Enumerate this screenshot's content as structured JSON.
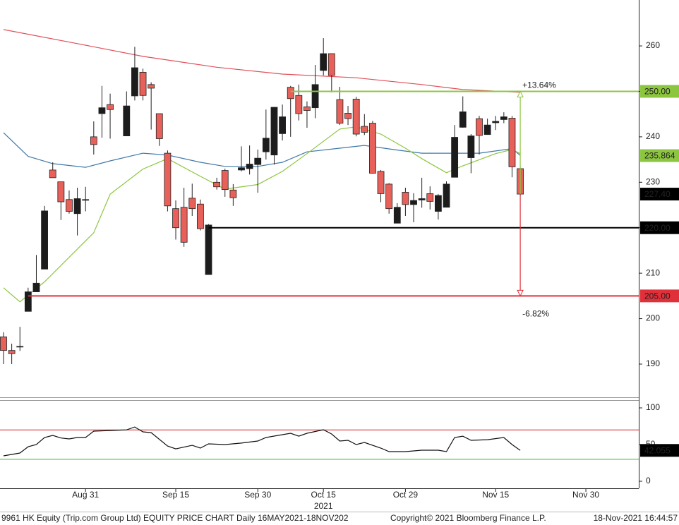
{
  "chart_data": [
    {
      "type": "candlestick",
      "x": [
        0,
        1,
        2,
        3,
        4,
        5,
        6,
        7,
        8,
        9,
        10,
        11,
        12,
        13,
        15,
        16,
        17,
        18,
        19,
        20,
        21,
        22,
        23,
        24,
        25,
        26,
        27,
        28,
        29,
        30,
        31,
        32,
        33,
        34,
        35,
        36,
        37,
        38,
        39,
        40,
        41,
        42,
        43,
        44,
        45,
        46,
        47,
        48,
        49,
        50,
        51,
        52,
        53,
        54,
        55,
        56,
        57,
        58,
        59,
        60,
        61,
        62,
        63
      ],
      "open": [
        196.0,
        193.0,
        193.9,
        201.6,
        205.9,
        210.9,
        232.7,
        230.1,
        226.2,
        223.1,
        226.2,
        240.0,
        245.1,
        247.1,
        240.2,
        249.0,
        254.2,
        251.5,
        245.1,
        236.4,
        224.2,
        224.5,
        226.5,
        225.2,
        209.7,
        230.0,
        232.6,
        228.3,
        232.7,
        233.0,
        233.9,
        236.7,
        236.0,
        240.7,
        250.9,
        249.1,
        246.6,
        246.4,
        254.6,
        258.3,
        248.2,
        245.2,
        248.3,
        242.3,
        243.0,
        232.4,
        229.6,
        221.0,
        227.8,
        225.1,
        226.1,
        227.5,
        223.6,
        224.5,
        231.1,
        242.1,
        235.4,
        244.0,
        240.5,
        243.1,
        243.8,
        244.1,
        233.0
      ],
      "high": [
        197.0,
        194.5,
        198.2,
        206.8,
        214.0,
        224.8,
        234.4,
        230.1,
        228.2,
        228.8,
        229.0,
        243.4,
        251.2,
        249.5,
        250.0,
        259.8,
        255.0,
        252.0,
        245.1,
        237.0,
        226.0,
        228.8,
        229.7,
        226.2,
        220.8,
        231.0,
        233.0,
        229.6,
        237.9,
        238.1,
        237.2,
        246.0,
        246.5,
        247.1,
        251.2,
        251.5,
        247.8,
        255.8,
        261.7,
        258.3,
        251.0,
        246.8,
        248.8,
        245.0,
        243.5,
        232.7,
        229.8,
        225.4,
        228.8,
        227.6,
        231.0,
        229.1,
        227.4,
        230.2,
        242.6,
        248.9,
        240.6,
        244.6,
        244.0,
        244.6,
        245.4,
        244.6,
        233.4
      ],
      "low": [
        190.0,
        190.0,
        192.9,
        201.6,
        205.9,
        210.9,
        231.0,
        221.7,
        223.1,
        218.3,
        223.6,
        236.1,
        239.8,
        239.6,
        240.2,
        248.0,
        248.0,
        241.6,
        238.0,
        223.6,
        217.4,
        215.8,
        222.6,
        219.4,
        209.7,
        228.4,
        226.8,
        224.8,
        232.4,
        231.7,
        227.7,
        235.0,
        233.9,
        239.2,
        240.0,
        243.6,
        242.0,
        244.1,
        253.5,
        249.8,
        242.6,
        242.6,
        240.1,
        240.4,
        231.9,
        225.6,
        223.1,
        221.0,
        222.6,
        221.2,
        224.4,
        224.0,
        221.8,
        224.5,
        231.1,
        242.0,
        232.0,
        236.1,
        240.5,
        241.5,
        243.0,
        231.1,
        226.9
      ],
      "close": [
        193.0,
        192.3,
        193.9,
        205.9,
        207.8,
        223.7,
        231.0,
        225.7,
        223.6,
        226.4,
        226.2,
        238.3,
        246.4,
        246.0,
        246.8,
        255.2,
        249.1,
        250.7,
        239.6,
        224.8,
        220.0,
        216.8,
        224.2,
        219.8,
        220.6,
        229.0,
        228.4,
        226.6,
        233.2,
        234.0,
        235.3,
        239.7,
        246.5,
        244.4,
        248.4,
        245.1,
        245.8,
        251.5,
        258.3,
        253.5,
        243.0,
        244.0,
        240.6,
        241.0,
        232.0,
        227.5,
        224.2,
        224.5,
        225.1,
        226.0,
        226.4,
        225.8,
        227.1,
        229.6,
        239.9,
        245.5,
        240.2,
        240.3,
        242.6,
        243.4,
        244.4,
        233.4,
        227.4
      ],
      "up_color": "#1c1c1c",
      "down_color": "#e8605a",
      "lines": [
        {
          "color": "#e0505a",
          "x": [
            0,
            9,
            17,
            26,
            34,
            43,
            51,
            56,
            63
          ],
          "values": [
            263.6,
            260.5,
            257.7,
            255.3,
            253.8,
            253.0,
            251.5,
            250.4,
            249.8
          ]
        },
        {
          "color": "#3f78a8",
          "x": [
            0,
            3,
            6,
            10,
            13,
            17,
            20,
            24,
            27,
            31,
            34,
            37,
            41,
            44,
            48,
            51,
            55,
            58,
            62,
            63
          ],
          "values": [
            240.9,
            235.7,
            234.1,
            233.3,
            234.7,
            236.4,
            236.0,
            234.4,
            233.5,
            233.5,
            234.4,
            236.7,
            237.5,
            238.1,
            237.1,
            236.4,
            236.4,
            236.4,
            237.4,
            235.9
          ]
        },
        {
          "color": "#8cc63f",
          "x": [
            0,
            2,
            5,
            8,
            11,
            13,
            17,
            20,
            24,
            27,
            31,
            34,
            37,
            41,
            43,
            46,
            49,
            51,
            54,
            56,
            60,
            62,
            63
          ],
          "values": [
            206.8,
            203.7,
            208.1,
            213.5,
            218.9,
            227.4,
            232.9,
            235.2,
            231.3,
            228.5,
            229.5,
            232.4,
            236.3,
            241.7,
            242.2,
            240.6,
            237.5,
            235.2,
            232.1,
            233.6,
            236.3,
            237.2,
            236.3
          ]
        }
      ],
      "hlines": [
        {
          "value": 250,
          "label": "250.00",
          "color": "#8cc63f",
          "x_start": 35
        },
        {
          "value": 220,
          "label": "220.00",
          "color": "#000000",
          "x_start": 25
        },
        {
          "value": 205,
          "label": "205.00",
          "color": "#e0303a",
          "x_start": 3
        }
      ],
      "markers": [
        {
          "value": 235.864,
          "label": "235.864",
          "color": "#8cc63f"
        },
        {
          "value": 227.4,
          "label": "227.40",
          "color": "#000000"
        }
      ],
      "arrows": [
        {
          "x": 63,
          "from": 227.4,
          "to": 250,
          "change": {
            "value": 13.64,
            "label": "+13.64%"
          },
          "color": "#8cc63f"
        },
        {
          "x": 63,
          "from": 227.4,
          "to": 205,
          "change": {
            "value": -6.82,
            "label": "-6.82%"
          },
          "color": "#e0303a"
        }
      ],
      "xlim": [
        -0.43,
        77.45
      ],
      "ylim": [
        182.7,
        270.1
      ],
      "yticks": [
        190,
        200,
        210,
        220,
        230,
        240,
        250,
        260
      ]
    },
    {
      "type": "line",
      "x": [
        0,
        2,
        3,
        4,
        5,
        6,
        7,
        8,
        9,
        10,
        11,
        13,
        15,
        16,
        17,
        18,
        20,
        21,
        23,
        24,
        25,
        27,
        29,
        31,
        32,
        34,
        35,
        36,
        37,
        39,
        40,
        41,
        42,
        43,
        44,
        46,
        47,
        49,
        51,
        53,
        54,
        55,
        56,
        57,
        59,
        61,
        62,
        63
      ],
      "values": [
        34.6,
        38.5,
        47,
        50,
        59.6,
        62.5,
        59,
        57.7,
        59.6,
        59.6,
        68.3,
        69.2,
        70,
        74,
        67.3,
        66.3,
        48,
        44.2,
        49,
        45.2,
        51,
        50,
        52,
        54.8,
        59.6,
        63.5,
        65.4,
        61.5,
        65.4,
        70.2,
        64.4,
        54.8,
        55.8,
        50,
        52.9,
        45.2,
        40.4,
        40.4,
        42.3,
        42.3,
        40.4,
        59.6,
        61.5,
        55.8,
        56.7,
        59.6,
        50,
        42.055
      ],
      "color": "#111111",
      "ref_lines": [
        {
          "value": 70,
          "color": "#d62728"
        },
        {
          "value": 30,
          "color": "#3cb83c"
        }
      ],
      "xlim": [
        -0.43,
        77.45
      ],
      "ylim": [
        -9.6,
        110.6
      ],
      "yticks": [
        0,
        50,
        100
      ],
      "xticks": [
        {
          "value": 10,
          "label": "Aug 31"
        },
        {
          "value": 21,
          "label": "Sep 15"
        },
        {
          "value": 31,
          "label": "Sep 30"
        },
        {
          "value": 39,
          "label": "Oct 15"
        },
        {
          "value": 49,
          "label": "Oct 29"
        },
        {
          "value": 60,
          "label": "Nov 15"
        },
        {
          "value": 71,
          "label": "Nov 30"
        }
      ],
      "x_year_label": "2021"
    }
  ],
  "footer": {
    "left": "9961 HK Equity (Trip.com Group Ltd) EQUITY PRICE CHART  Daily 16MAY2021-18NOV202",
    "center": "Copyright© 2021 Bloomberg Finance L.P.",
    "right": "18-Nov-2021 16:44:57"
  }
}
